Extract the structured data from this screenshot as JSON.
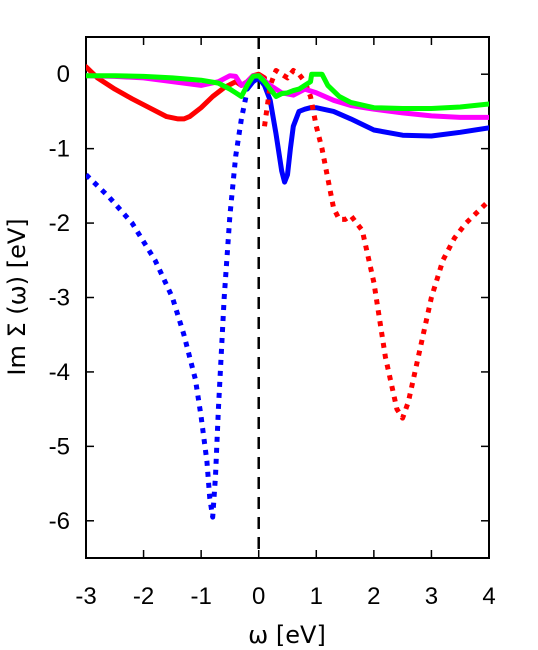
{
  "chart_data": {
    "type": "line",
    "xlabel": "ω [eV]",
    "ylabel": "Im Σ (ω) [eV]",
    "xlim": [
      -3,
      4
    ],
    "ylim": [
      -6.5,
      0.5
    ],
    "x_ticks": [
      -3,
      -2,
      -1,
      0,
      1,
      2,
      3,
      4
    ],
    "y_ticks": [
      0,
      -1,
      -2,
      -3,
      -4,
      -5,
      -6
    ],
    "grid": false,
    "legend": "none",
    "zero_line": {
      "x": 0,
      "style": "dashed",
      "color": "#000000"
    },
    "series": [
      {
        "color": "#0000ff",
        "style": "dotted",
        "x": [
          -3.0,
          -2.6,
          -2.2,
          -1.8,
          -1.5,
          -1.3,
          -1.1,
          -1.0,
          -0.9,
          -0.85,
          -0.8,
          -0.75,
          -0.7,
          -0.6,
          -0.5,
          -0.4,
          -0.3,
          -0.22
        ],
        "y": [
          -1.35,
          -1.65,
          -2.0,
          -2.5,
          -3.0,
          -3.5,
          -4.1,
          -4.6,
          -5.2,
          -5.7,
          -5.95,
          -5.4,
          -4.5,
          -3.0,
          -1.9,
          -1.1,
          -0.6,
          -0.3
        ]
      },
      {
        "color": "#0000ff",
        "style": "solid",
        "x": [
          -0.2,
          -0.1,
          0.0,
          0.1,
          0.2,
          0.3,
          0.4,
          0.45,
          0.5,
          0.55,
          0.6,
          0.7,
          0.8,
          0.9,
          1.0,
          1.3,
          1.6,
          2.0,
          2.5,
          3.0,
          3.5,
          4.0
        ],
        "y": [
          -0.2,
          -0.1,
          -0.05,
          -0.15,
          -0.35,
          -0.8,
          -1.3,
          -1.45,
          -1.35,
          -1.0,
          -0.7,
          -0.5,
          -0.47,
          -0.45,
          -0.45,
          -0.5,
          -0.6,
          -0.75,
          -0.82,
          -0.83,
          -0.78,
          -0.72
        ]
      },
      {
        "color": "#ff0000",
        "style": "solid",
        "x": [
          -3.0,
          -2.8,
          -2.5,
          -2.2,
          -1.9,
          -1.6,
          -1.4,
          -1.3,
          -1.2,
          -1.0,
          -0.8,
          -0.6,
          -0.4,
          -0.3,
          -0.2,
          -0.1,
          0.0,
          0.1
        ],
        "y": [
          0.1,
          -0.05,
          -0.2,
          -0.33,
          -0.45,
          -0.57,
          -0.6,
          -0.6,
          -0.57,
          -0.45,
          -0.3,
          -0.18,
          -0.1,
          -0.15,
          -0.1,
          -0.02,
          0.0,
          -0.05
        ]
      },
      {
        "color": "#ff0000",
        "style": "dotted",
        "x": [
          0.1,
          0.2,
          0.3,
          0.4,
          0.5,
          0.6,
          0.7,
          0.8,
          0.9,
          1.0,
          1.1,
          1.2,
          1.3,
          1.4,
          1.5,
          1.6,
          1.8,
          2.0,
          2.2,
          2.4,
          2.5,
          2.6,
          2.8,
          3.0,
          3.2,
          3.4,
          3.6,
          3.8,
          4.0
        ],
        "y": [
          -0.7,
          -0.15,
          0.05,
          0.0,
          -0.05,
          0.05,
          0.0,
          -0.1,
          -0.3,
          -0.7,
          -1.0,
          -1.4,
          -1.8,
          -1.95,
          -1.95,
          -1.9,
          -2.1,
          -2.8,
          -3.8,
          -4.5,
          -4.62,
          -4.4,
          -3.7,
          -3.0,
          -2.5,
          -2.2,
          -2.0,
          -1.85,
          -1.7
        ]
      },
      {
        "color": "#ff00ff",
        "style": "solid",
        "x": [
          -3.0,
          -2.5,
          -2.0,
          -1.5,
          -1.0,
          -0.7,
          -0.5,
          -0.4,
          -0.3,
          -0.2,
          -0.1,
          0.0,
          0.2,
          0.4,
          0.6,
          0.8,
          1.0,
          1.3,
          1.6,
          2.0,
          2.5,
          3.0,
          3.5,
          4.0
        ],
        "y": [
          -0.02,
          -0.03,
          -0.05,
          -0.1,
          -0.15,
          -0.1,
          -0.02,
          -0.03,
          -0.15,
          -0.1,
          -0.02,
          -0.02,
          -0.15,
          -0.25,
          -0.28,
          -0.2,
          -0.25,
          -0.35,
          -0.42,
          -0.47,
          -0.52,
          -0.56,
          -0.58,
          -0.58
        ]
      },
      {
        "color": "#00ff00",
        "style": "solid",
        "x": [
          -3.0,
          -2.5,
          -2.0,
          -1.5,
          -1.0,
          -0.7,
          -0.5,
          -0.4,
          -0.3,
          -0.2,
          -0.1,
          0.0,
          0.1,
          0.2,
          0.3,
          0.4,
          0.5,
          0.6,
          0.7,
          0.8,
          0.9,
          0.92,
          1.0,
          1.1,
          1.2,
          1.4,
          1.6,
          2.0,
          2.5,
          3.0,
          3.5,
          4.0
        ],
        "y": [
          -0.02,
          -0.02,
          -0.03,
          -0.05,
          -0.08,
          -0.12,
          -0.2,
          -0.25,
          -0.3,
          -0.15,
          -0.03,
          -0.02,
          -0.1,
          -0.2,
          -0.3,
          -0.26,
          -0.25,
          -0.22,
          -0.2,
          -0.15,
          -0.1,
          0.0,
          0.0,
          0.0,
          -0.15,
          -0.3,
          -0.38,
          -0.45,
          -0.46,
          -0.46,
          -0.44,
          -0.4
        ]
      }
    ]
  }
}
